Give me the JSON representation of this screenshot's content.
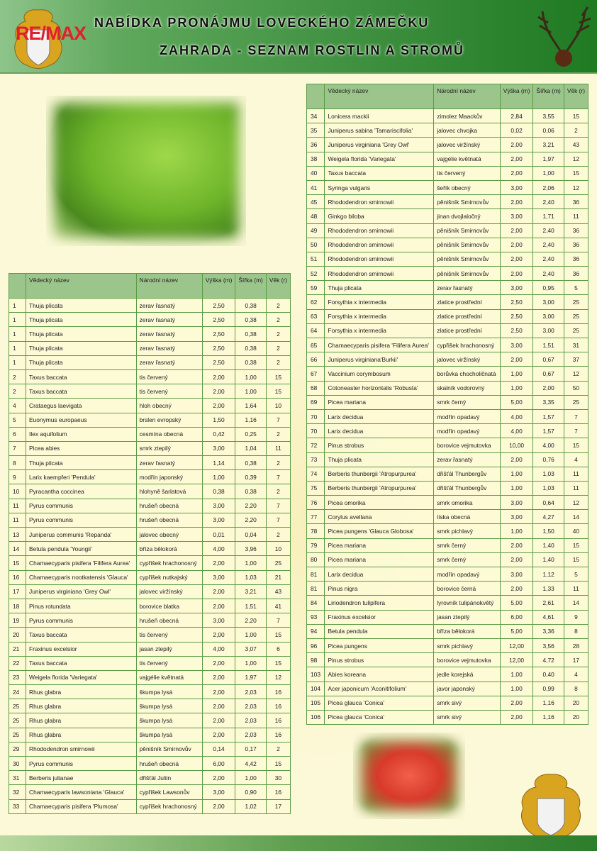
{
  "header": {
    "title_line1": "NABÍDKA PRONÁJMU LOVECKÉHO ZÁMEČKU",
    "title_line2": "ZAHRADA - SEZNAM ROSTLIN A STROMŮ",
    "logo_text": "RE/MAX"
  },
  "colors": {
    "header_green": "#3f9040",
    "table_header": "#9bc58a",
    "table_border": "#5c9a46",
    "page_bg": "#fcf9d8",
    "logo_red": "#e0202a"
  },
  "columns": [
    "",
    "Vědecký název",
    "Národní název",
    "Výška (m)",
    "Šířka (m)",
    "Věk (r)"
  ],
  "left_table": [
    [
      "1",
      "Thuja plicata",
      "zerav řasnatý",
      "2,50",
      "0,38",
      "2"
    ],
    [
      "1",
      "Thuja plicata",
      "zerav řasnatý",
      "2,50",
      "0,38",
      "2"
    ],
    [
      "1",
      "Thuja plicata",
      "zerav řasnatý",
      "2,50",
      "0,38",
      "2"
    ],
    [
      "1",
      "Thuja plicata",
      "zerav řasnatý",
      "2,50",
      "0,38",
      "2"
    ],
    [
      "1",
      "Thuja plicata",
      "zerav řasnatý",
      "2,50",
      "0,38",
      "2"
    ],
    [
      "2",
      "Taxus baccata",
      "tis červený",
      "2,00",
      "1,00",
      "15"
    ],
    [
      "2",
      "Taxus baccata",
      "tis červený",
      "2,00",
      "1,00",
      "15"
    ],
    [
      "4",
      "Crataegus laevigata",
      "hloh obecný",
      "2,00",
      "1,64",
      "10"
    ],
    [
      "5",
      "Euonymus europaeus",
      "brslen evropský",
      "1,50",
      "1,16",
      "7"
    ],
    [
      "6",
      "Ilex aquifolium",
      "cesmína obecná",
      "0,42",
      "0,25",
      "2"
    ],
    [
      "7",
      "Picea abies",
      "smrk ztepilý",
      "3,00",
      "1,04",
      "11"
    ],
    [
      "8",
      "Thuja plicata",
      "zerav řasnatý",
      "1,14",
      "0,38",
      "2"
    ],
    [
      "9",
      "Larix kaempferi 'Pendula'",
      "modřín japonský",
      "1,00",
      "0,39",
      "7"
    ],
    [
      "10",
      "Pyracantha coccinea",
      "hlohyně šarlatová",
      "0,38",
      "0,38",
      "2"
    ],
    [
      "11",
      "Pyrus communis",
      "hrušeň obecná",
      "3,00",
      "2,20",
      "7"
    ],
    [
      "11",
      "Pyrus communis",
      "hrušeň obecná",
      "3,00",
      "2,20",
      "7"
    ],
    [
      "13",
      "Juniperus communis 'Repanda'",
      "jalovec obecný",
      "0,01",
      "0,04",
      "2"
    ],
    [
      "14",
      "Betula pendula 'Youngii'",
      "bříza bělokorá",
      "4,00",
      "3,96",
      "10"
    ],
    [
      "15",
      "Chamaecyparis pisifera 'Filifera Aurea'",
      "cypřišek hrachonosný",
      "2,00",
      "1,00",
      "25"
    ],
    [
      "16",
      "Chamaecyparis nootkatensis 'Glauca'",
      "cypřišek nutkajský",
      "3,00",
      "1,03",
      "21"
    ],
    [
      "17",
      "Juniperus virginiana 'Grey Owl'",
      "jalovec viržínský",
      "2,00",
      "3,21",
      "43"
    ],
    [
      "18",
      "Pinus rotundata",
      "borovice blatka",
      "2,00",
      "1,51",
      "41"
    ],
    [
      "19",
      "Pyrus communis",
      "hrušeň obecná",
      "3,00",
      "2,20",
      "7"
    ],
    [
      "20",
      "Taxus baccata",
      "tis červený",
      "2,00",
      "1,00",
      "15"
    ],
    [
      "21",
      "Fraxinus excelsior",
      "jasan ztepilý",
      "4,00",
      "3,07",
      "6"
    ],
    [
      "22",
      "Taxus baccata",
      "tis červený",
      "2,00",
      "1,00",
      "15"
    ],
    [
      "23",
      "Weigela florida 'Variegata'",
      "vajgélie květnatá",
      "2,00",
      "1,97",
      "12"
    ],
    [
      "24",
      "Rhus glabra",
      "škumpa lysá",
      "2,00",
      "2,03",
      "16"
    ],
    [
      "25",
      "Rhus glabra",
      "škumpa lysá",
      "2,00",
      "2,03",
      "16"
    ],
    [
      "25",
      "Rhus glabra",
      "škumpa lysá",
      "2,00",
      "2,03",
      "16"
    ],
    [
      "25",
      "Rhus glabra",
      "škumpa lysá",
      "2,00",
      "2,03",
      "16"
    ],
    [
      "29",
      "Rhododendron smirnowii",
      "pěnišník Smirnovův",
      "0,14",
      "0,17",
      "2"
    ],
    [
      "30",
      "Pyrus communis",
      "hrušeň obecná",
      "6,00",
      "4,42",
      "15"
    ],
    [
      "31",
      "Berberis julianae",
      "dřišťál Juliin",
      "2,00",
      "1,00",
      "30"
    ],
    [
      "32",
      " Chamaecyparis lawsoniana 'Glauca'",
      "cypřišek Lawsonův",
      "3,00",
      "0,90",
      "16"
    ],
    [
      "33",
      " Chamaecyparis pisifera 'Plumosa'",
      "cypřišek hrachonosný",
      "2,00",
      "1,02",
      "17"
    ]
  ],
  "right_table": [
    [
      "34",
      "Lonicera mackii",
      "zimolez Maackův",
      "2,84",
      "3,55",
      "15"
    ],
    [
      "35",
      "Juniperus sabina 'Tamariscifolia'",
      "jalovec chvojka",
      "0,02",
      "0,06",
      "2"
    ],
    [
      "36",
      "Juniperus virginiana 'Grey Owl'",
      "jalovec viržínský",
      "2,00",
      "3,21",
      "43"
    ],
    [
      "38",
      "Weigela florida 'Variegata'",
      "vajgélie květnatá",
      "2,00",
      "1,97",
      "12"
    ],
    [
      "40",
      "Taxus baccata",
      "tis červený",
      "2,00",
      "1,00",
      "15"
    ],
    [
      "41",
      "Syringa vulgaris",
      "šeřík obecný",
      "3,00",
      "2,06",
      "12"
    ],
    [
      "45",
      "Rhododendron smirnowii",
      "pěnišník Smirnovův",
      "2,00",
      "2,40",
      "36"
    ],
    [
      "48",
      "Ginkgo biloba",
      "jinan dvojlaločný",
      "3,00",
      "1,71",
      "11"
    ],
    [
      "49",
      "Rhododendron smirnowii",
      "pěnišník Smirnovův",
      "2,00",
      "2,40",
      "36"
    ],
    [
      "50",
      "Rhododendron smirnowii",
      "pěnišník Smirnovův",
      "2,00",
      "2,40",
      "36"
    ],
    [
      "51",
      "Rhododendron smirnowii",
      "pěnišník Smirnovův",
      "2,00",
      "2,40",
      "36"
    ],
    [
      "52",
      "Rhododendron smirnowii",
      "pěnišník Smirnovův",
      "2,00",
      "2,40",
      "36"
    ],
    [
      "59",
      "Thuja plicata",
      "zerav řasnatý",
      "3,00",
      "0,95",
      "5"
    ],
    [
      "62",
      "Forsythia x intermedia",
      "zlatice prostřední",
      "2,50",
      "3,00",
      "25"
    ],
    [
      "63",
      "Forsythia x intermedia",
      "zlatice prostřední",
      "2,50",
      "3,00",
      "25"
    ],
    [
      "64",
      "Forsythia x intermedia",
      "zlatice prostřední",
      "2,50",
      "3,00",
      "25"
    ],
    [
      "65",
      "Chamaecyparis pisifera 'Filifera Aurea'",
      "cypřišek hrachonosný",
      "3,00",
      "1,51",
      "31"
    ],
    [
      "66",
      "Juniperus virginiana'Burkii'",
      "jalovec viržínský",
      "2,00",
      "0,67",
      "37"
    ],
    [
      "67",
      "Vaccinium corymbosum",
      "borůvka chocholičnatá",
      "1,00",
      "0,67",
      "12"
    ],
    [
      "68",
      "Cotoneaster horizontalis 'Robusta'",
      "skalník vodorovný",
      "1,00",
      "2,00",
      "50"
    ],
    [
      "69",
      "Picea mariana",
      "smrk černý",
      "5,00",
      "3,35",
      "25"
    ],
    [
      "70",
      "Larix decidua",
      "modřín opadavý",
      "4,00",
      "1,57",
      "7"
    ],
    [
      "70",
      "Larix decidua",
      "modřín opadavý",
      "4,00",
      "1,57",
      "7"
    ],
    [
      "72",
      "Pinus strobus",
      "borovice vejmutovka",
      "10,00",
      "4,00",
      "15"
    ],
    [
      "73",
      "Thuja plicata",
      "zerav řasnatý",
      "2,00",
      "0,76",
      "4"
    ],
    [
      "74",
      "Berberis thunbergii 'Atropurpurea'",
      "dřišťál Thunbergův",
      "1,00",
      "1,03",
      "11"
    ],
    [
      "75",
      "Berberis thunbergii 'Atropurpurea'",
      "dřišťál Thunbergův",
      "1,00",
      "1,03",
      "11"
    ],
    [
      "76",
      "Picea omorika",
      "smrk omorika",
      "3,00",
      "0,64",
      "12"
    ],
    [
      "77",
      " Corylus avellana",
      "líska obecná",
      "3,00",
      "4,27",
      "14"
    ],
    [
      "78",
      " Picea pungens 'Glauca Globosa'",
      "smrk pichlavý",
      "1,00",
      "1,50",
      "40"
    ],
    [
      "79",
      " Picea mariana",
      "smrk černý",
      "2,00",
      "1,40",
      "15"
    ],
    [
      "80",
      " Picea mariana",
      "smrk černý",
      "2,00",
      "1,40",
      "15"
    ],
    [
      "81",
      "Larix decidua",
      "modřín opadavý",
      "3,00",
      "1,12",
      "5"
    ],
    [
      "81",
      "Pinus nigra",
      "borovice černá",
      "2,00",
      "1,33",
      "11"
    ],
    [
      "84",
      "Liriodendron tulipifera",
      "lyrovník tulipánokvětý",
      "5,00",
      "2,61",
      "14"
    ],
    [
      "93",
      "Fraxinus excelsior",
      "jasan ztepilý",
      "6,00",
      "4,61",
      "9"
    ],
    [
      "94",
      "Betula pendula",
      "bříza bělokorá",
      "5,00",
      "3,36",
      "8"
    ],
    [
      "96",
      "Picea pungens",
      "smrk pichlavý",
      "12,00",
      "3,56",
      "28"
    ],
    [
      "98",
      "Pinus strobus",
      "borovice vejmutovka",
      "12,00",
      "4,72",
      "17"
    ],
    [
      "103",
      "Abies koreana",
      "jedle korejská",
      "1,00",
      "0,40",
      "4"
    ],
    [
      "104",
      "Acer japonicum 'Aconitifolium'",
      "javor japonský",
      "1,00",
      "0,99",
      "8"
    ],
    [
      "105",
      "Picea glauca 'Conica'",
      "smrk sivý",
      "2,00",
      "1,16",
      "20"
    ],
    [
      "106",
      "Picea glauca 'Conica'",
      "smrk sivý",
      "2,00",
      "1,16",
      "20"
    ]
  ]
}
